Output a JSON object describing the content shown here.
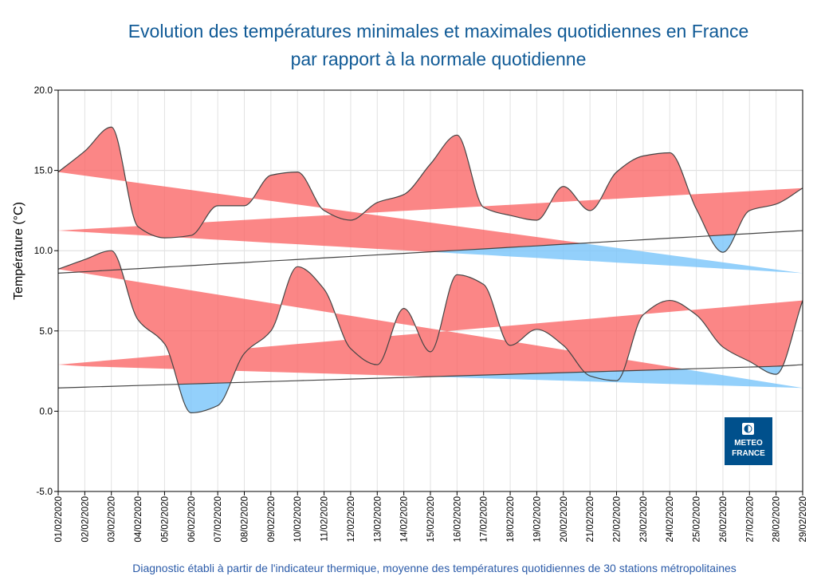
{
  "chart_data": {
    "type": "area",
    "title": "Evolution des températures minimales et maximales quotidiennes en France",
    "subtitle": "par rapport à la normale quotidienne",
    "ylabel": "Température (°C)",
    "xlabel": "",
    "ylim": [
      -5,
      20
    ],
    "yticks": [
      "20.0",
      "15.0",
      "10.0",
      "5.0",
      "0.0",
      "-5.0"
    ],
    "grid": true,
    "legend": "none",
    "categories": [
      "01/02/2020",
      "02/02/2020",
      "03/02/2020",
      "04/02/2020",
      "05/02/2020",
      "06/02/2020",
      "07/02/2020",
      "08/02/2020",
      "09/02/2020",
      "10/02/2020",
      "11/02/2020",
      "12/02/2020",
      "13/02/2020",
      "14/02/2020",
      "15/02/2020",
      "16/02/2020",
      "17/02/2020",
      "18/02/2020",
      "19/02/2020",
      "20/02/2020",
      "21/02/2020",
      "22/02/2020",
      "23/02/2020",
      "24/02/2020",
      "25/02/2020",
      "26/02/2020",
      "27/02/2020",
      "28/02/2020",
      "29/02/2020"
    ],
    "series": [
      {
        "values": [
          14.9,
          16.2,
          17.7,
          11.5,
          10.8,
          10.95,
          12.8,
          12.8,
          14.7,
          14.9,
          12.5,
          11.9,
          13.0,
          13.5,
          15.4,
          17.2,
          12.7,
          12.2,
          11.9,
          14.0,
          12.5,
          14.9,
          15.9,
          16.1,
          12.6,
          9.9,
          12.5,
          12.9,
          13.9
        ]
      },
      {
        "values": [
          8.6,
          8.69,
          8.79,
          8.88,
          8.98,
          9.07,
          9.17,
          9.26,
          9.36,
          9.45,
          9.55,
          9.64,
          9.74,
          9.83,
          9.93,
          10.02,
          10.11,
          10.21,
          10.3,
          10.4,
          10.49,
          10.59,
          10.68,
          10.78,
          10.87,
          10.97,
          11.06,
          11.16,
          11.25
        ]
      },
      {
        "values": [
          8.85,
          9.45,
          10.0,
          5.7,
          4.2,
          -0.1,
          0.35,
          3.6,
          5.0,
          9.0,
          7.6,
          3.9,
          2.9,
          6.4,
          3.7,
          8.5,
          7.9,
          4.1,
          5.1,
          4.1,
          2.2,
          1.9,
          6.0,
          6.9,
          6.0,
          4.0,
          3.1,
          2.3,
          6.9
        ]
      },
      {
        "values": [
          1.45,
          1.5,
          1.55,
          1.6,
          1.65,
          1.7,
          1.75,
          1.8,
          1.85,
          1.9,
          1.95,
          2.0,
          2.05,
          2.1,
          2.15,
          2.2,
          2.25,
          2.3,
          2.35,
          2.4,
          2.45,
          2.5,
          2.55,
          2.6,
          2.65,
          2.7,
          2.75,
          2.8,
          2.9
        ]
      }
    ],
    "colors": {
      "above": "#fa6464",
      "below": "#78c4fa",
      "line": "#444444"
    }
  },
  "footer": "Diagnostic établi à partir de l'indicateur thermique, moyenne des températures quotidiennes de 30 stations métropolitaines",
  "logo": {
    "line1": "METEO",
    "line2": "FRANCE"
  }
}
